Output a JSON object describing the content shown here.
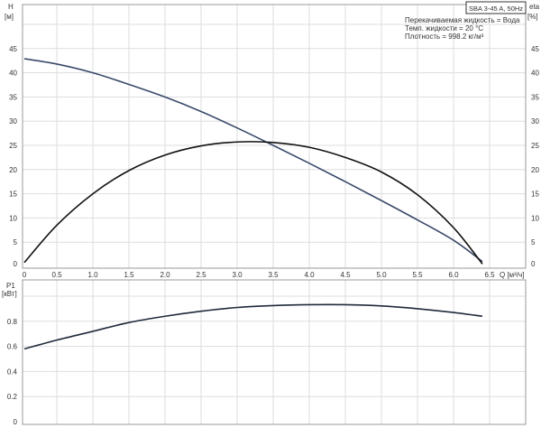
{
  "chart_data": [
    {
      "type": "line",
      "title": "SBA 3-45 A, 50Hz",
      "annotations": [
        "Перекачиваемая жидкость = Вода",
        "Темп. жидкости = 20 °C",
        "Плотность = 998.2 кг/м³"
      ],
      "xlabel": "Q [м³/ч]",
      "ylabel": "H",
      "ylabel_unit": "[м]",
      "y2label": "eta",
      "y2label_unit": "[%]",
      "xlim": [
        0,
        7
      ],
      "ylim": [
        0,
        50
      ],
      "xticks": [
        "0",
        "0.5",
        "1.0",
        "1.5",
        "2.0",
        "2.5",
        "3.0",
        "3.5",
        "4.0",
        "4.5",
        "5.0",
        "5.5",
        "6.0",
        "6.5"
      ],
      "yticks": [
        "0",
        "5",
        "10",
        "15",
        "20",
        "25",
        "30",
        "35",
        "40",
        "45"
      ],
      "grid": true,
      "colors": {
        "H": "#3a4a6a",
        "eta": "#111111"
      },
      "series": [
        {
          "key": "H",
          "x": [
            0.05,
            0.5,
            1.0,
            1.5,
            2.0,
            2.5,
            3.0,
            3.5,
            4.0,
            4.5,
            5.0,
            5.5,
            6.0,
            6.4
          ],
          "values": [
            42.9,
            41.8,
            40.0,
            37.6,
            35.0,
            32.0,
            28.6,
            25.0,
            21.3,
            17.5,
            13.6,
            9.6,
            5.4,
            1.0
          ]
        },
        {
          "key": "eta",
          "x": [
            0.05,
            0.5,
            1.0,
            1.5,
            2.0,
            2.5,
            3.0,
            3.5,
            4.0,
            4.5,
            5.0,
            5.5,
            6.0,
            6.4
          ],
          "values": [
            0.8,
            8.5,
            15.0,
            19.8,
            23.0,
            24.9,
            25.7,
            25.6,
            24.6,
            22.5,
            19.5,
            14.8,
            8.0,
            0.5
          ]
        }
      ]
    },
    {
      "type": "line",
      "ylabel": "P1",
      "ylabel_unit": "[кВт]",
      "xlim": [
        0,
        7
      ],
      "ylim": [
        0,
        1.1
      ],
      "yticks": [
        "0",
        "0.2",
        "0.4",
        "0.6",
        "0.8"
      ],
      "grid": true,
      "colors": {
        "P1": "#1e2a3a"
      },
      "series": [
        {
          "key": "P1",
          "x": [
            0.05,
            0.5,
            1.0,
            1.5,
            2.0,
            2.5,
            3.0,
            3.5,
            4.0,
            4.5,
            5.0,
            5.5,
            6.0,
            6.4
          ],
          "values": [
            0.58,
            0.65,
            0.72,
            0.79,
            0.84,
            0.88,
            0.91,
            0.925,
            0.932,
            0.932,
            0.922,
            0.9,
            0.87,
            0.84
          ]
        }
      ]
    }
  ]
}
